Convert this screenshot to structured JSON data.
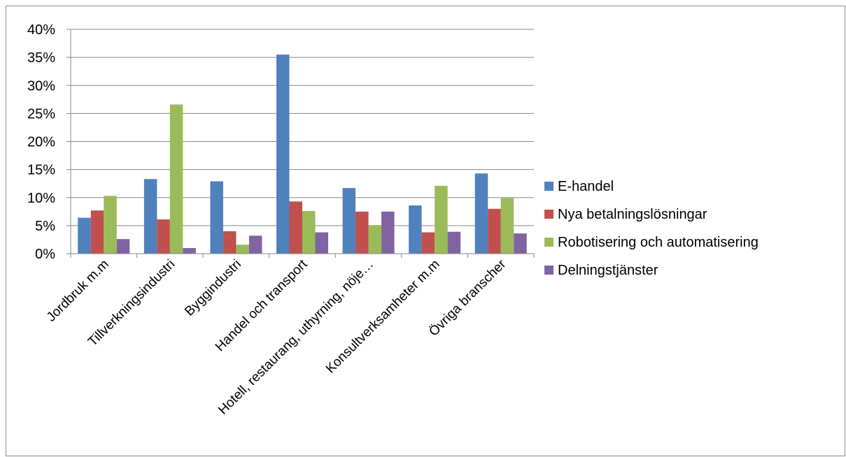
{
  "chart_data": {
    "type": "bar",
    "categories": [
      "Jordbruk m.m",
      "Tillverkningsindustri",
      "Byggindustri",
      "Handel och transport",
      "Hotell, restaurang, uthyrning, nöje…",
      "Konsultverksamheter m.m",
      "Övriga branscher"
    ],
    "series": [
      {
        "name": "E-handel",
        "color": "#4F81BD",
        "values": [
          6.4,
          13.3,
          12.9,
          35.5,
          11.7,
          8.6,
          14.3
        ]
      },
      {
        "name": "Nya betalningslösningar",
        "color": "#C0504D",
        "values": [
          7.7,
          6.1,
          4.0,
          9.3,
          7.5,
          3.8,
          8.0
        ]
      },
      {
        "name": "Robotisering och automatisering",
        "color": "#9BBB59",
        "values": [
          10.3,
          26.6,
          1.6,
          7.6,
          5.1,
          12.1,
          9.9
        ]
      },
      {
        "name": "Delningstjänster",
        "color": "#8064A2",
        "values": [
          2.6,
          1.0,
          3.2,
          3.8,
          7.5,
          3.9,
          3.6
        ]
      }
    ],
    "yticks": [
      "0%",
      "5%",
      "10%",
      "15%",
      "20%",
      "25%",
      "30%",
      "35%",
      "40%"
    ],
    "ylim": [
      0,
      40
    ],
    "grid": true,
    "legend": "right",
    "title": "",
    "xlabel": "",
    "ylabel": ""
  }
}
